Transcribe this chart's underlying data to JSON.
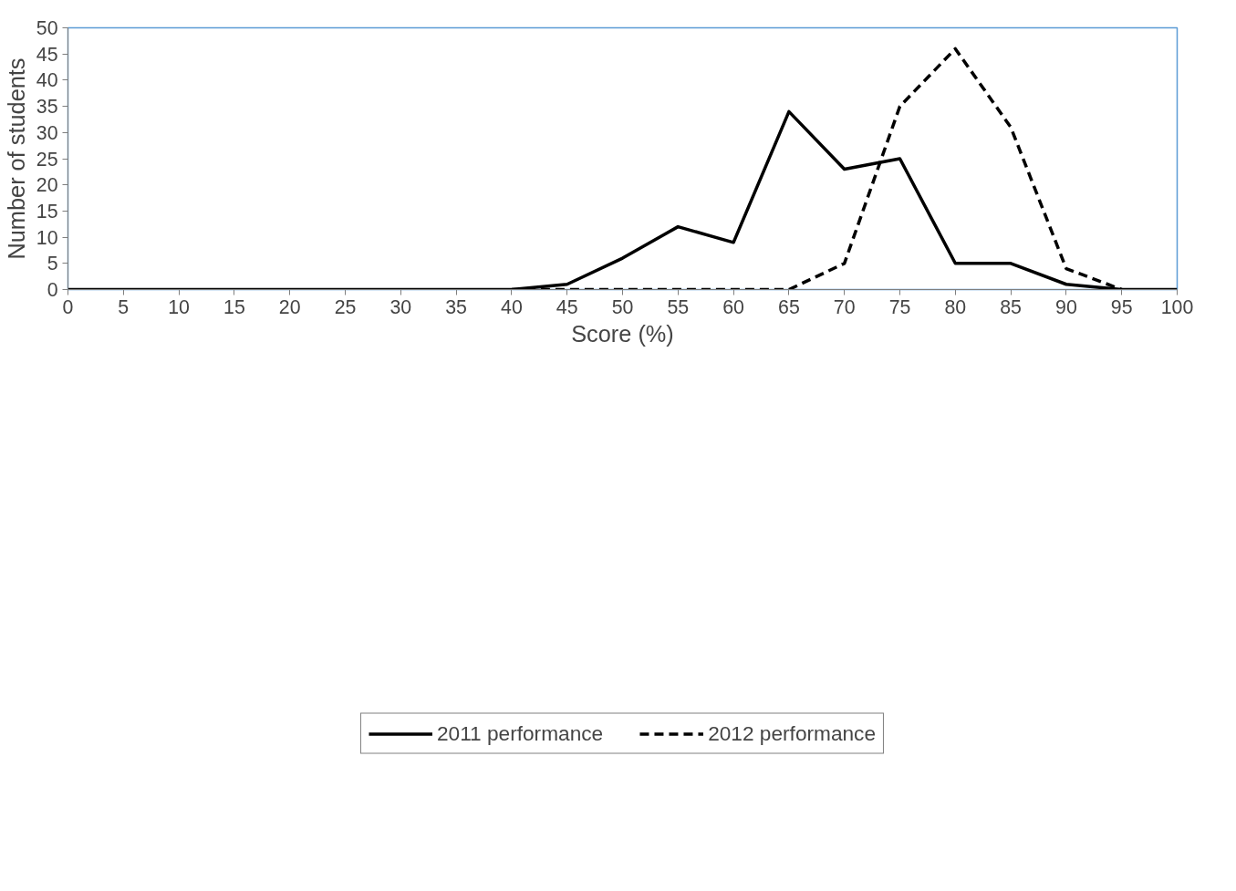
{
  "chart_data": {
    "type": "line",
    "xlabel": "Score (%)",
    "ylabel": "Number of students",
    "xlim": [
      0,
      100
    ],
    "ylim": [
      0,
      50
    ],
    "xticks": [
      0,
      5,
      10,
      15,
      20,
      25,
      30,
      35,
      40,
      45,
      50,
      55,
      60,
      65,
      70,
      75,
      80,
      85,
      90,
      95,
      100
    ],
    "yticks": [
      0,
      5,
      10,
      15,
      20,
      25,
      30,
      35,
      40,
      45,
      50
    ],
    "grid": false,
    "legend": "bottom",
    "marker": "none",
    "series": [
      {
        "name": "2011 performance",
        "color": "#000000",
        "line_style": "solid",
        "x": [
          0,
          5,
          10,
          15,
          20,
          25,
          30,
          35,
          40,
          45,
          50,
          55,
          60,
          65,
          70,
          75,
          80,
          85,
          90,
          95,
          100
        ],
        "values": [
          0,
          0,
          0,
          0,
          0,
          0,
          0,
          0,
          0,
          1,
          6,
          12,
          9,
          34,
          23,
          25,
          5,
          5,
          1,
          0,
          0
        ]
      },
      {
        "name": "2012 performance",
        "color": "#000000",
        "line_style": "dashed",
        "x": [
          40,
          45,
          50,
          55,
          60,
          65,
          70,
          75,
          80,
          85,
          90,
          95
        ],
        "values": [
          0,
          0,
          0,
          0,
          0,
          0,
          5,
          35,
          46,
          31,
          4,
          0
        ]
      }
    ]
  }
}
